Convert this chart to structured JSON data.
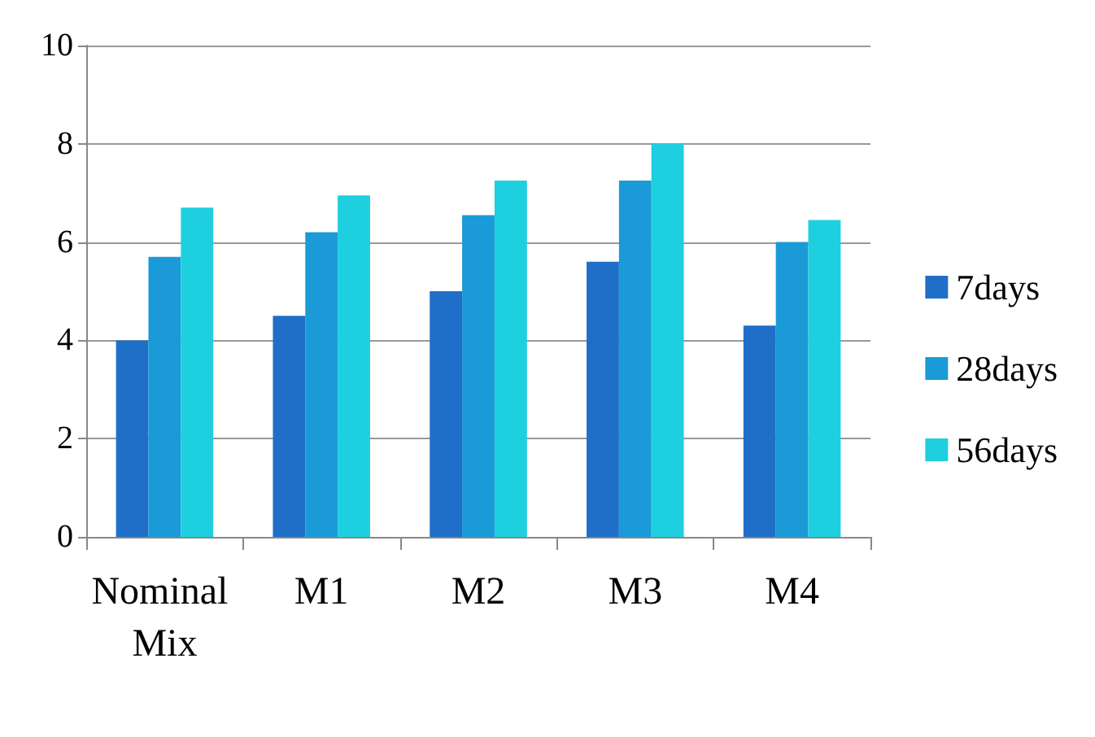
{
  "chart_data": {
    "type": "bar",
    "categories": [
      "Nominal Mix",
      "M1",
      "M2",
      "M3",
      "M4"
    ],
    "series": [
      {
        "name": "7days",
        "color": "#1f6fc8",
        "values": [
          4.0,
          4.5,
          5.0,
          5.6,
          4.3
        ]
      },
      {
        "name": "28days",
        "color": "#1a9ad6",
        "values": [
          5.7,
          6.2,
          6.55,
          7.25,
          6.0
        ]
      },
      {
        "name": "56days",
        "color": "#1ecfe0",
        "values": [
          6.7,
          6.95,
          7.25,
          8.0,
          6.45
        ]
      }
    ],
    "ylim": [
      0,
      10
    ],
    "yticks": [
      0,
      2,
      4,
      6,
      8,
      10
    ],
    "grid": "y",
    "legend": "right"
  }
}
